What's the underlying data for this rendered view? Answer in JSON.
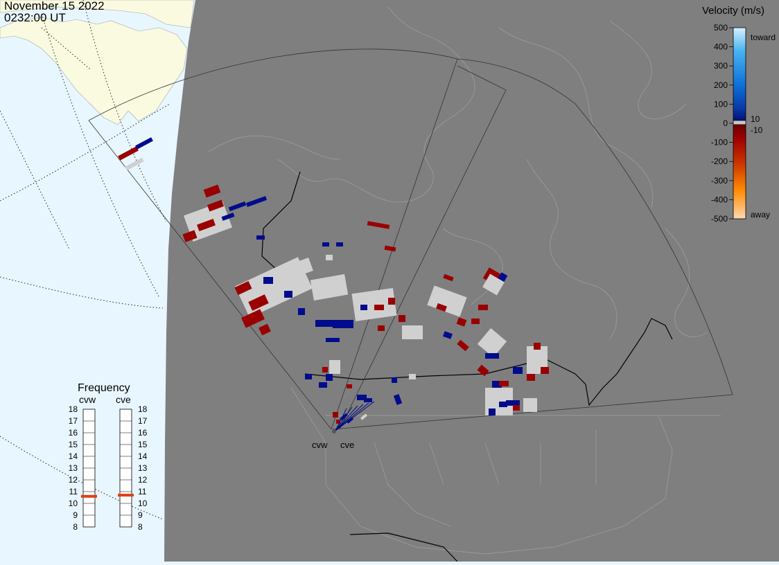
{
  "header": {
    "date": "November 15 2022",
    "time": "0232:00 UT"
  },
  "colors": {
    "ocean": "#e8f6ff",
    "land_outside": "#fafae0",
    "night_land": "#7f7f7f",
    "away_red": "#990000",
    "toward_blue": "#000c8c",
    "ground_scatter": "#d0d0d0"
  },
  "velocity_scale": {
    "title": "Velocity (m/s)",
    "ticks": [
      "500",
      "400",
      "300",
      "200",
      "100",
      "0",
      "-100",
      "-200",
      "-300",
      "-400",
      "-500"
    ],
    "extra_ticks": [
      "10",
      "-10"
    ],
    "end_labels": {
      "top": "toward",
      "bottom": "away"
    }
  },
  "frequency_panel": {
    "title": "Frequency",
    "radars": [
      "cvw",
      "cve"
    ],
    "ticks": [
      "18",
      "17",
      "16",
      "15",
      "14",
      "13",
      "12",
      "11",
      "10",
      "9",
      "8"
    ],
    "current_mhz": {
      "cvw": 10.6,
      "cve": 10.7
    },
    "marker_color": "#e04010"
  },
  "radar_sites": [
    {
      "name": "cvw",
      "label": "cvw"
    },
    {
      "name": "cve",
      "label": "cve"
    }
  ]
}
